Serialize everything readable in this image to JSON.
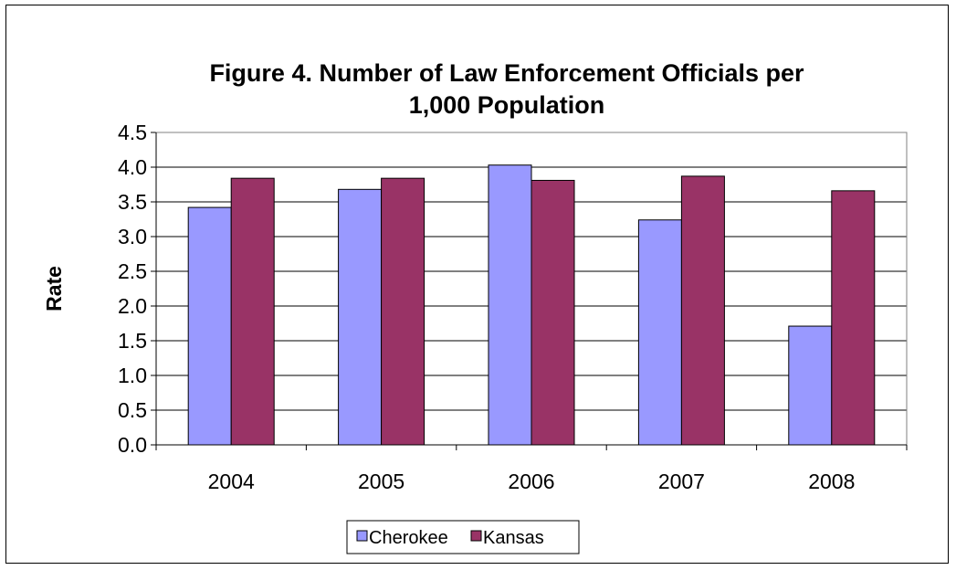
{
  "chart_data": {
    "type": "bar",
    "title_lines": [
      "Figure 4. Number of Law Enforcement Officials  per",
      "1,000 Population"
    ],
    "xlabel": "",
    "ylabel": "Rate",
    "categories": [
      "2004",
      "2005",
      "2006",
      "2007",
      "2008"
    ],
    "series": [
      {
        "name": "Cherokee",
        "color": "#9999ff",
        "values": [
          3.42,
          3.68,
          4.03,
          3.24,
          1.71
        ]
      },
      {
        "name": "Kansas",
        "color": "#993366",
        "values": [
          3.84,
          3.84,
          3.81,
          3.87,
          3.66
        ]
      }
    ],
    "ylim": [
      0,
      4.5
    ],
    "yticks": [
      "0.0",
      "0.5",
      "1.0",
      "1.5",
      "2.0",
      "2.5",
      "3.0",
      "3.5",
      "4.0",
      "4.5"
    ],
    "grid": true,
    "legend_position": "bottom-center"
  }
}
